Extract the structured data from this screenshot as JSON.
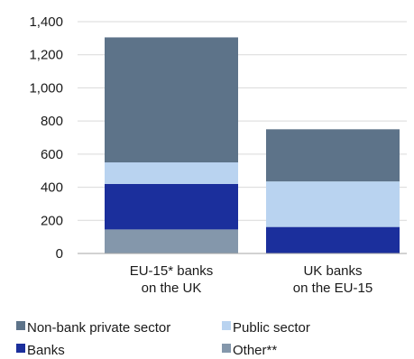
{
  "chart_data": {
    "type": "bar",
    "stacked": true,
    "categories": [
      [
        "EU-15* banks",
        "on the UK"
      ],
      [
        "UK banks",
        "on the EU-15"
      ]
    ],
    "series": [
      {
        "name": "Other**",
        "color": "#8497ab",
        "values": [
          145,
          0
        ]
      },
      {
        "name": "Banks",
        "color": "#1b2f9c",
        "values": [
          275,
          160
        ]
      },
      {
        "name": "Public sector",
        "color": "#b9d3f0",
        "values": [
          130,
          275
        ]
      },
      {
        "name": "Non-bank private sector",
        "color": "#5d7389",
        "values": [
          755,
          315
        ]
      }
    ],
    "yticks": [
      "0",
      "200",
      "400",
      "600",
      "800",
      "1,000",
      "1,200",
      "1,400"
    ],
    "ylim": [
      0,
      1400
    ],
    "grid": true,
    "legend_position": "bottom",
    "legend_order": [
      "Non-bank private sector",
      "Public sector",
      "Banks",
      "Other**"
    ]
  }
}
